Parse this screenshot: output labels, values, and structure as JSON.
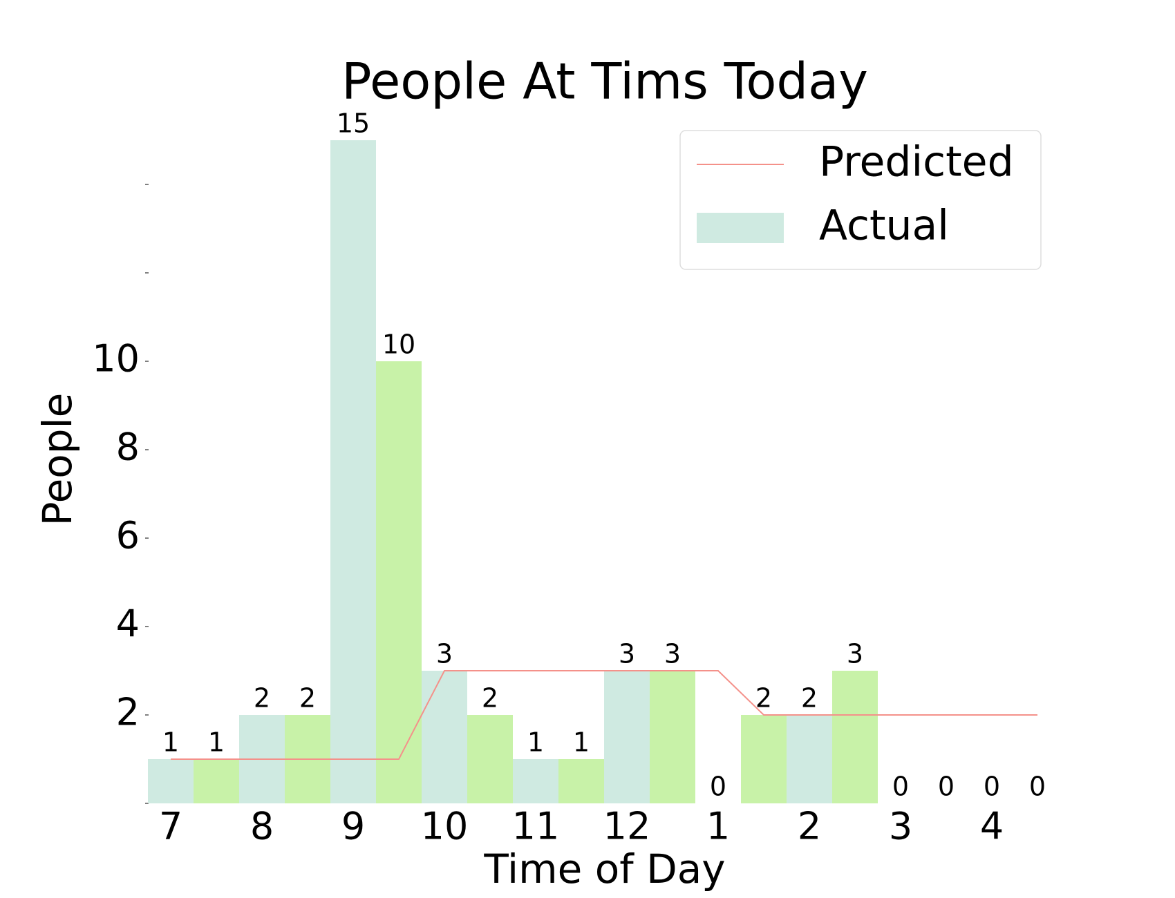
{
  "chart_data": {
    "type": "bar",
    "title": "People At Tims Today",
    "xlabel": "Time of Day",
    "ylabel": "People",
    "categories": [
      "7",
      null,
      "8",
      null,
      "9",
      null,
      "10",
      null,
      "11",
      null,
      "12",
      null,
      "1",
      null,
      "2",
      null,
      "3",
      null,
      "4",
      null
    ],
    "series": [
      {
        "name": "Predicted",
        "type": "line",
        "color": "#f4918a",
        "values": [
          1,
          1,
          1,
          1,
          1,
          1,
          3,
          3,
          3,
          3,
          3,
          3,
          3,
          2,
          2,
          2,
          2,
          2,
          2,
          2
        ]
      },
      {
        "name": "Actual",
        "type": "bar",
        "colors": [
          "#cfeae1",
          "#c8f2a8"
        ],
        "values": [
          1,
          1,
          2,
          2,
          15,
          10,
          3,
          2,
          1,
          1,
          3,
          3,
          0,
          2,
          2,
          3,
          0,
          0,
          0,
          0
        ]
      }
    ],
    "ylim": [
      0,
      15
    ],
    "yticks": [
      2,
      4,
      6,
      8,
      10
    ],
    "yticks_unlabeled": [
      0,
      12,
      14
    ],
    "grid": false,
    "legend": "upper right"
  }
}
